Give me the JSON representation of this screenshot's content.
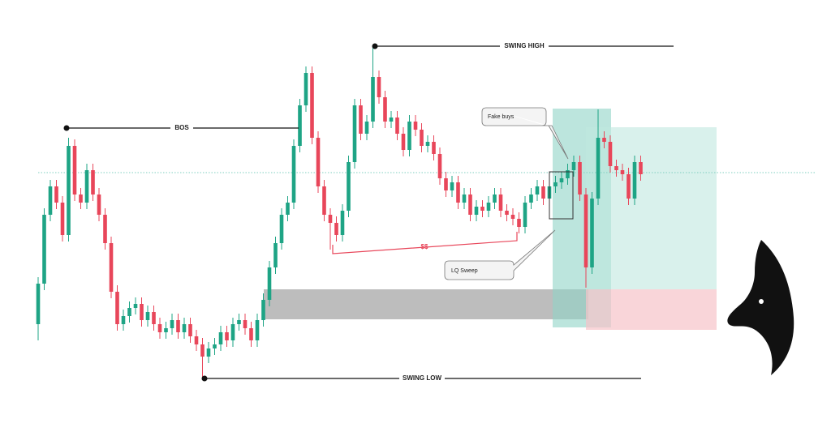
{
  "chart_data": {
    "type": "candlestick",
    "annotations": {
      "swing_high": "SWING HIGH",
      "bos": "BOS",
      "swing_low": "SWING LOW",
      "liquidity": "$$",
      "fake_buys": "Fake buys",
      "lq_sweep": "LQ Sweep"
    },
    "up_color": "#1ea485",
    "down_color": "#e8465a",
    "ylim": [
      0,
      500
    ],
    "open": [
      100,
      150,
      235,
      270,
      250,
      210,
      320,
      260,
      250,
      290,
      260,
      235,
      200,
      140,
      100,
      110,
      120,
      125,
      105,
      115,
      100,
      90,
      95,
      105,
      90,
      100,
      85,
      75,
      60,
      70,
      75,
      90,
      80,
      100,
      105,
      95,
      80,
      105,
      130,
      170,
      200,
      235,
      250,
      320,
      370,
      410,
      330,
      270,
      235,
      225,
      210,
      240,
      300,
      370,
      335,
      350,
      405,
      380,
      350,
      355,
      335,
      315,
      350,
      340,
      320,
      325,
      310,
      280,
      265,
      275,
      250,
      260,
      235,
      245,
      240,
      250,
      260,
      240,
      235,
      230,
      220,
      250,
      260,
      270,
      255,
      270,
      275,
      280,
      290,
      300,
      260,
      170,
      255,
      330,
      325,
      295,
      290,
      285,
      255,
      300
    ],
    "high": [
      158,
      243,
      278,
      278,
      258,
      330,
      328,
      268,
      298,
      298,
      268,
      243,
      208,
      148,
      118,
      128,
      133,
      133,
      123,
      123,
      108,
      103,
      113,
      113,
      108,
      108,
      93,
      83,
      78,
      83,
      98,
      98,
      108,
      113,
      113,
      103,
      113,
      138,
      178,
      208,
      243,
      258,
      328,
      378,
      418,
      418,
      338,
      278,
      243,
      233,
      248,
      308,
      378,
      378,
      358,
      443,
      413,
      388,
      363,
      363,
      343,
      358,
      358,
      348,
      333,
      333,
      318,
      288,
      283,
      283,
      268,
      268,
      253,
      253,
      258,
      268,
      268,
      248,
      243,
      238,
      258,
      268,
      278,
      278,
      278,
      283,
      288,
      298,
      308,
      308,
      268,
      263,
      365,
      338,
      333,
      303,
      298,
      293,
      308,
      308
    ],
    "low": [
      80,
      142,
      227,
      242,
      202,
      202,
      252,
      242,
      242,
      252,
      227,
      192,
      132,
      92,
      92,
      102,
      112,
      97,
      97,
      92,
      82,
      82,
      87,
      82,
      82,
      77,
      67,
      33,
      52,
      62,
      67,
      72,
      72,
      92,
      87,
      72,
      72,
      97,
      122,
      162,
      192,
      227,
      242,
      312,
      362,
      322,
      262,
      227,
      192,
      202,
      202,
      232,
      292,
      327,
      327,
      342,
      372,
      342,
      342,
      327,
      307,
      307,
      332,
      312,
      312,
      302,
      272,
      257,
      257,
      242,
      242,
      227,
      227,
      232,
      232,
      242,
      232,
      227,
      222,
      212,
      212,
      242,
      252,
      247,
      247,
      262,
      267,
      272,
      282,
      252,
      145,
      162,
      247,
      317,
      287,
      282,
      277,
      247,
      247,
      277
    ],
    "close": [
      150,
      235,
      270,
      250,
      210,
      320,
      260,
      250,
      290,
      260,
      235,
      200,
      140,
      100,
      110,
      120,
      125,
      105,
      115,
      100,
      90,
      95,
      105,
      90,
      100,
      85,
      75,
      60,
      70,
      75,
      90,
      80,
      100,
      105,
      95,
      80,
      105,
      130,
      170,
      200,
      235,
      250,
      320,
      370,
      410,
      330,
      270,
      235,
      225,
      210,
      240,
      300,
      370,
      335,
      350,
      405,
      380,
      350,
      355,
      335,
      315,
      350,
      340,
      320,
      325,
      310,
      280,
      265,
      275,
      250,
      260,
      235,
      245,
      240,
      250,
      260,
      240,
      235,
      230,
      220,
      250,
      260,
      270,
      255,
      270,
      275,
      280,
      290,
      300,
      260,
      170,
      255,
      330,
      325,
      295,
      290,
      285,
      255,
      300,
      285
    ]
  }
}
